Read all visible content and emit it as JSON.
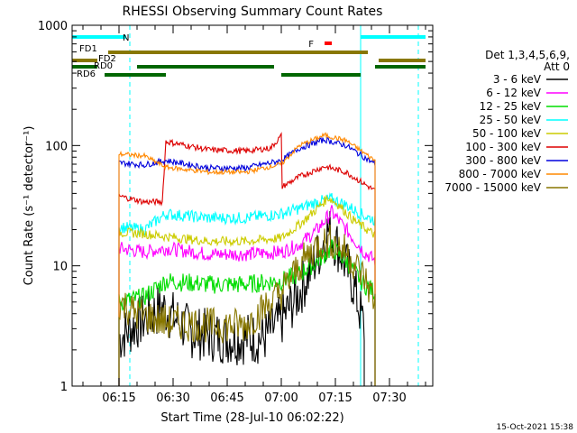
{
  "chart_data": {
    "type": "line",
    "title": "RHESSI Observing Summary Count Rates",
    "xlabel": "Start Time (28-Jul-10 06:02:22)",
    "ylabel": "Count Rate (s⁻¹ detector⁻¹)",
    "y_scale": "log",
    "ylim": [
      1,
      1000
    ],
    "xlim": [
      "06:02",
      "07:42"
    ],
    "x_ticks": [
      "06:15",
      "06:30",
      "06:45",
      "07:00",
      "07:15",
      "07:30"
    ],
    "y_ticks": [
      "1",
      "10",
      "100",
      "1000"
    ],
    "grid": false,
    "footer_date": "15-Oct-2021 15:38",
    "legend": {
      "position": "right",
      "header": [
        "Det 1,3,4,5,6,9,",
        "Att 0"
      ],
      "entries": [
        {
          "label": "3 - 6 keV",
          "color": "#000000"
        },
        {
          "label": "6 - 12 keV",
          "color": "#ff00ff"
        },
        {
          "label": "12 - 25 keV",
          "color": "#00dd00"
        },
        {
          "label": "25 - 50 keV",
          "color": "#00ffff"
        },
        {
          "label": "50 - 100 keV",
          "color": "#cccc00"
        },
        {
          "label": "100 - 300 keV",
          "color": "#dd0000"
        },
        {
          "label": "300 - 800 keV",
          "color": "#0000dd"
        },
        {
          "label": "800 - 7000 keV",
          "color": "#ff8800"
        },
        {
          "label": "7000 - 15000 keV",
          "color": "#887700"
        }
      ]
    },
    "flag_bars": [
      {
        "label": "N",
        "color": "#00ffff",
        "segments": [
          [
            "06:02",
            "06:17"
          ],
          [
            "07:22",
            "07:40"
          ]
        ]
      },
      {
        "label": "F",
        "color": "#ff0000",
        "segments": [
          [
            "07:12",
            "07:14"
          ]
        ]
      },
      {
        "label": "FD1",
        "color": "#887700",
        "segments": [
          [
            "06:12",
            "07:24"
          ]
        ]
      },
      {
        "label": "FD2",
        "color": "#887700",
        "segments": [
          [
            "06:02",
            "06:09"
          ],
          [
            "07:27",
            "07:40"
          ]
        ]
      },
      {
        "label": "RD0",
        "color": "#006600",
        "segments": [
          [
            "06:02",
            "06:09"
          ],
          [
            "06:20",
            "06:58"
          ],
          [
            "07:26",
            "07:40"
          ]
        ]
      },
      {
        "label": "RD6",
        "color": "#006600",
        "segments": [
          [
            "06:11",
            "06:28"
          ],
          [
            "07:00",
            "07:22"
          ]
        ]
      }
    ],
    "night_lines": [
      {
        "time": "06:02",
        "style": "solid"
      },
      {
        "time": "06:18",
        "style": "dashed"
      },
      {
        "time": "07:22",
        "style": "solid"
      },
      {
        "time": "07:38",
        "style": "dashed"
      }
    ],
    "series": [
      {
        "name": "3 - 6 keV",
        "color": "#000000",
        "start": "06:15",
        "end": "07:23",
        "points": [
          [
            "06:15",
            2.5
          ],
          [
            "06:20",
            3.3
          ],
          [
            "06:27",
            4.5
          ],
          [
            "06:35",
            2.8
          ],
          [
            "06:45",
            2.5
          ],
          [
            "06:55",
            2.5
          ],
          [
            "07:00",
            3.5
          ],
          [
            "07:05",
            6
          ],
          [
            "07:10",
            12
          ],
          [
            "07:13",
            20
          ],
          [
            "07:16",
            14
          ],
          [
            "07:20",
            7
          ],
          [
            "07:23",
            3
          ]
        ]
      },
      {
        "name": "6 - 12 keV",
        "color": "#ff00ff",
        "start": "06:15",
        "end": "07:26",
        "points": [
          [
            "06:15",
            14
          ],
          [
            "06:22",
            13
          ],
          [
            "06:28",
            14
          ],
          [
            "06:40",
            12.5
          ],
          [
            "06:50",
            12.5
          ],
          [
            "07:00",
            13
          ],
          [
            "07:05",
            15
          ],
          [
            "07:10",
            20
          ],
          [
            "07:14",
            28
          ],
          [
            "07:18",
            20
          ],
          [
            "07:23",
            13
          ],
          [
            "07:26",
            11
          ]
        ]
      },
      {
        "name": "12 - 25 keV",
        "color": "#00dd00",
        "start": "06:15",
        "end": "07:26",
        "points": [
          [
            "06:15",
            5
          ],
          [
            "06:22",
            5.5
          ],
          [
            "06:28",
            7.5
          ],
          [
            "06:40",
            7
          ],
          [
            "06:50",
            7
          ],
          [
            "07:00",
            7.5
          ],
          [
            "07:05",
            8.5
          ],
          [
            "07:10",
            11
          ],
          [
            "07:14",
            14
          ],
          [
            "07:18",
            11
          ],
          [
            "07:23",
            7
          ],
          [
            "07:26",
            6
          ]
        ]
      },
      {
        "name": "25 - 50 keV",
        "color": "#00ffff",
        "start": "06:15",
        "end": "07:26",
        "points": [
          [
            "06:15",
            21
          ],
          [
            "06:22",
            20
          ],
          [
            "06:28",
            27
          ],
          [
            "06:40",
            25
          ],
          [
            "06:50",
            25
          ],
          [
            "07:00",
            27
          ],
          [
            "07:05",
            30
          ],
          [
            "07:10",
            34
          ],
          [
            "07:14",
            36
          ],
          [
            "07:18",
            32
          ],
          [
            "07:23",
            26
          ],
          [
            "07:26",
            24
          ]
        ]
      },
      {
        "name": "50 - 100 keV",
        "color": "#cccc00",
        "start": "06:15",
        "end": "07:26",
        "points": [
          [
            "06:15",
            19
          ],
          [
            "06:22",
            18.5
          ],
          [
            "06:28",
            17.5
          ],
          [
            "06:40",
            16
          ],
          [
            "06:50",
            16
          ],
          [
            "07:00",
            17
          ],
          [
            "07:05",
            22
          ],
          [
            "07:10",
            30
          ],
          [
            "07:13",
            37
          ],
          [
            "07:16",
            32
          ],
          [
            "07:20",
            24
          ],
          [
            "07:26",
            18
          ]
        ]
      },
      {
        "name": "100 - 300 keV",
        "color": "#dd0000",
        "start": "06:15",
        "end": "07:26",
        "points": [
          [
            "06:15",
            38
          ],
          [
            "06:22",
            34
          ],
          [
            "06:27",
            34
          ],
          [
            "06:28",
            108
          ],
          [
            "06:40",
            92
          ],
          [
            "06:50",
            90
          ],
          [
            "06:57",
            95
          ],
          [
            "07:00",
            120
          ],
          [
            "07:00",
            45
          ],
          [
            "07:05",
            55
          ],
          [
            "07:12",
            67
          ],
          [
            "07:18",
            60
          ],
          [
            "07:26",
            42
          ]
        ]
      },
      {
        "name": "300 - 800 keV",
        "color": "#0000dd",
        "start": "06:15",
        "end": "07:26",
        "points": [
          [
            "06:15",
            72
          ],
          [
            "06:22",
            69
          ],
          [
            "06:28",
            75
          ],
          [
            "06:40",
            65
          ],
          [
            "06:50",
            65
          ],
          [
            "07:00",
            75
          ],
          [
            "07:05",
            95
          ],
          [
            "07:12",
            112
          ],
          [
            "07:18",
            100
          ],
          [
            "07:26",
            70
          ]
        ]
      },
      {
        "name": "800 - 7000 keV",
        "color": "#ff8800",
        "start": "06:15",
        "end": "07:26",
        "points": [
          [
            "06:15",
            85
          ],
          [
            "06:22",
            82
          ],
          [
            "06:28",
            66
          ],
          [
            "06:40",
            60
          ],
          [
            "06:50",
            60
          ],
          [
            "07:00",
            70
          ],
          [
            "07:05",
            100
          ],
          [
            "07:12",
            122
          ],
          [
            "07:18",
            110
          ],
          [
            "07:26",
            75
          ]
        ]
      },
      {
        "name": "7000 - 15000 keV",
        "color": "#887700",
        "start": "06:15",
        "end": "07:26",
        "points": [
          [
            "06:15",
            5
          ],
          [
            "06:20",
            4
          ],
          [
            "06:28",
            3.4
          ],
          [
            "06:40",
            3.2
          ],
          [
            "06:50",
            3.2
          ],
          [
            "07:00",
            6
          ],
          [
            "07:05",
            10
          ],
          [
            "07:10",
            15
          ],
          [
            "07:14",
            16
          ],
          [
            "07:18",
            13
          ],
          [
            "07:23",
            8
          ],
          [
            "07:26",
            5
          ]
        ]
      }
    ]
  }
}
